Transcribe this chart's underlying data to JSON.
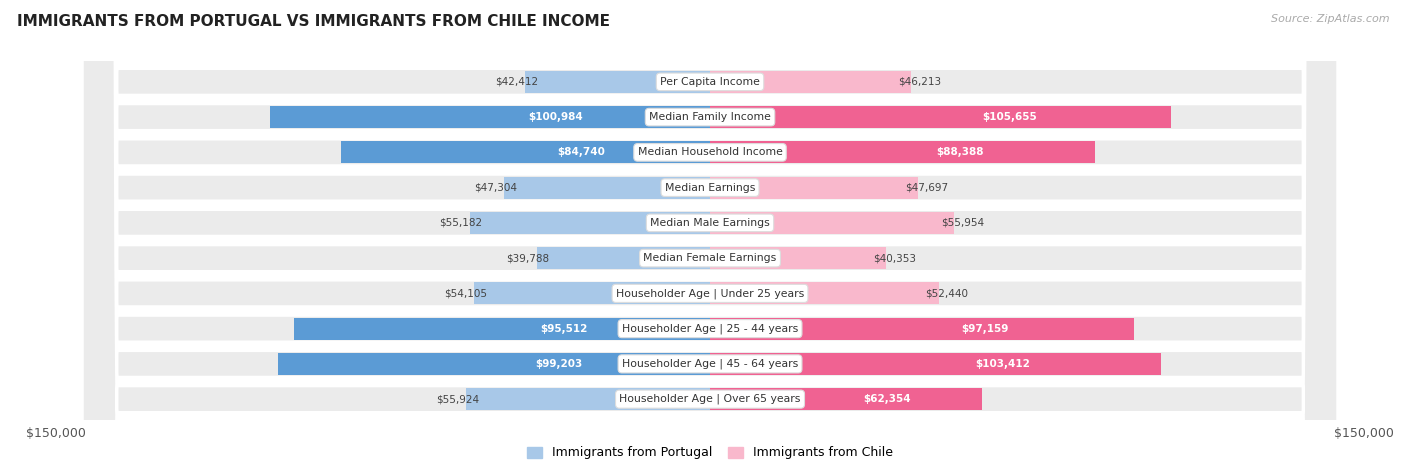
{
  "title": "IMMIGRANTS FROM PORTUGAL VS IMMIGRANTS FROM CHILE INCOME",
  "source": "Source: ZipAtlas.com",
  "categories": [
    "Per Capita Income",
    "Median Family Income",
    "Median Household Income",
    "Median Earnings",
    "Median Male Earnings",
    "Median Female Earnings",
    "Householder Age | Under 25 years",
    "Householder Age | 25 - 44 years",
    "Householder Age | 45 - 64 years",
    "Householder Age | Over 65 years"
  ],
  "portugal_values": [
    42412,
    100984,
    84740,
    47304,
    55182,
    39788,
    54105,
    95512,
    99203,
    55924
  ],
  "chile_values": [
    46213,
    105655,
    88388,
    47697,
    55954,
    40353,
    52440,
    97159,
    103412,
    62354
  ],
  "portugal_labels": [
    "$42,412",
    "$100,984",
    "$84,740",
    "$47,304",
    "$55,182",
    "$39,788",
    "$54,105",
    "$95,512",
    "$99,203",
    "$55,924"
  ],
  "chile_labels": [
    "$46,213",
    "$105,655",
    "$88,388",
    "$47,697",
    "$55,954",
    "$40,353",
    "$52,440",
    "$97,159",
    "$103,412",
    "$62,354"
  ],
  "portugal_color_light": "#a8c8e8",
  "portugal_color_dark": "#5b9bd5",
  "chile_color_light": "#f9b8cc",
  "chile_color_dark": "#f06292",
  "max_value": 150000,
  "row_bg_color": "#ebebeb",
  "background_color": "#ffffff",
  "label_threshold": 60000
}
